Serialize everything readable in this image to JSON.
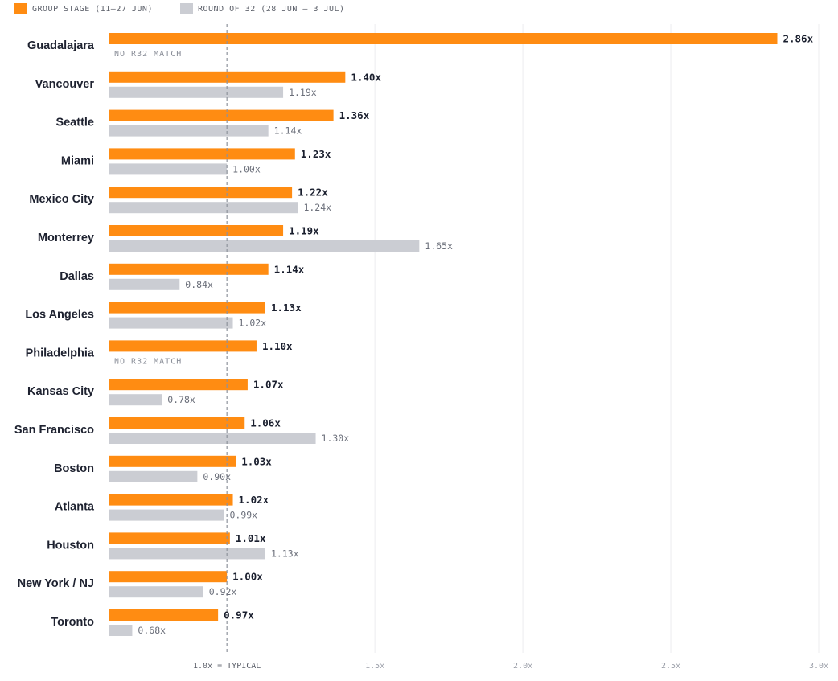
{
  "chart_data": {
    "type": "bar",
    "orientation": "horizontal",
    "categories": [
      "Guadalajara",
      "Vancouver",
      "Seattle",
      "Miami",
      "Mexico City",
      "Monterrey",
      "Dallas",
      "Los Angeles",
      "Philadelphia",
      "Kansas City",
      "San Francisco",
      "Boston",
      "Atlanta",
      "Houston",
      "New York / NJ",
      "Toronto"
    ],
    "series": [
      {
        "name": "GROUP STAGE (11–27 JUN)",
        "color": "#ff8c12",
        "values": [
          2.86,
          1.4,
          1.36,
          1.23,
          1.22,
          1.19,
          1.14,
          1.13,
          1.1,
          1.07,
          1.06,
          1.03,
          1.02,
          1.01,
          1.0,
          0.97
        ],
        "labels": [
          "2.86x",
          "1.40x",
          "1.36x",
          "1.23x",
          "1.22x",
          "1.19x",
          "1.14x",
          "1.13x",
          "1.10x",
          "1.07x",
          "1.06x",
          "1.03x",
          "1.02x",
          "1.01x",
          "1.00x",
          "0.97x"
        ]
      },
      {
        "name": "ROUND OF 32 (28 JUN – 3 JUL)",
        "color": "#cbcdd3",
        "values": [
          null,
          1.19,
          1.14,
          1.0,
          1.24,
          1.65,
          0.84,
          1.02,
          null,
          0.78,
          1.3,
          0.9,
          0.99,
          1.13,
          0.92,
          0.68
        ],
        "labels": [
          "NO R32 MATCH",
          "1.19x",
          "1.14x",
          "1.00x",
          "1.24x",
          "1.65x",
          "0.84x",
          "1.02x",
          "NO R32 MATCH",
          "0.78x",
          "1.30x",
          "0.90x",
          "0.99x",
          "1.13x",
          "0.92x",
          "0.68x"
        ]
      }
    ],
    "xlim": [
      0.6,
      3.0
    ],
    "xticks": [
      {
        "value": 1.0,
        "label": "1.0x = TYPICAL"
      },
      {
        "value": 1.5,
        "label": "1.5x"
      },
      {
        "value": 2.0,
        "label": "2.0x"
      },
      {
        "value": 2.5,
        "label": "2.5x"
      },
      {
        "value": 3.0,
        "label": "3.0x"
      }
    ],
    "reference_line": 1.0,
    "grid": true,
    "legend": "top-left"
  }
}
